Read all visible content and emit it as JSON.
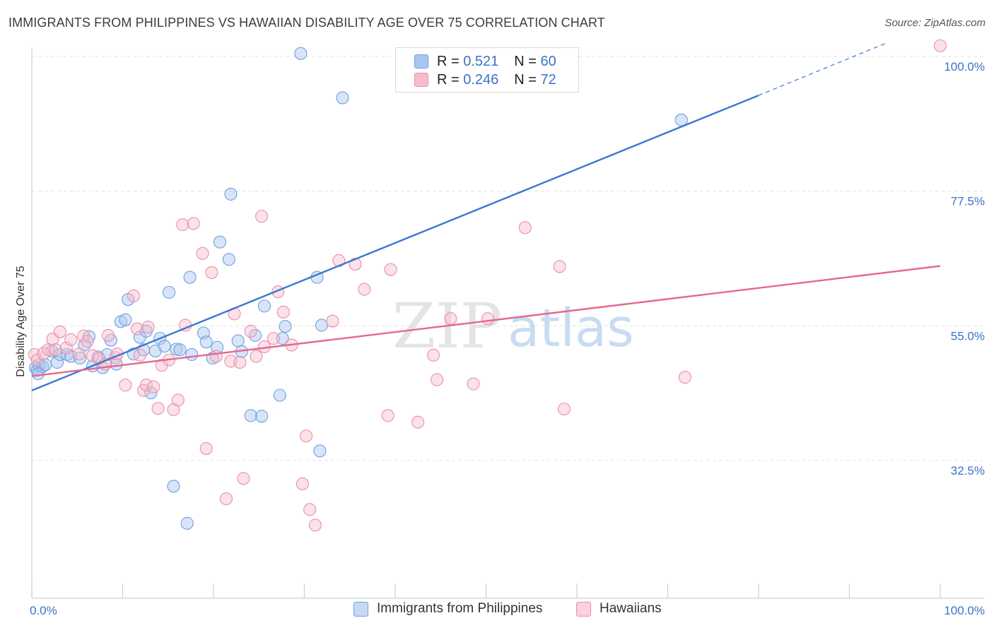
{
  "header": {
    "title": "IMMIGRANTS FROM PHILIPPINES VS HAWAIIAN DISABILITY AGE OVER 75 CORRELATION CHART",
    "source": "Source: ZipAtlas.com"
  },
  "watermark": {
    "zip": "ZIP",
    "atlas": "atlas"
  },
  "legend": {
    "r_label": "R =",
    "n_label": "N =",
    "rows": [
      {
        "r": "0.521",
        "n": "60",
        "color": "#a9c6f0",
        "border": "#6f9fde"
      },
      {
        "r": "0.246",
        "n": "72",
        "color": "#f7bccd",
        "border": "#eb8eaa"
      }
    ]
  },
  "chart_data": {
    "type": "scatter",
    "title": "IMMIGRANTS FROM PHILIPPINES VS HAWAIIAN DISABILITY AGE OVER 75 CORRELATION CHART",
    "xlabel": "",
    "ylabel": "Disability Age Over 75",
    "xlim": [
      0,
      100
    ],
    "ylim": [
      10,
      101
    ],
    "x_tick_labels": [
      "0.0%",
      "100.0%"
    ],
    "y_ticks": [
      32.5,
      55.0,
      77.5,
      100.0
    ],
    "y_tick_labels": [
      "32.5%",
      "55.0%",
      "77.5%",
      "100.0%"
    ],
    "grid": true,
    "series": [
      {
        "name": "Immigrants from Philippines",
        "color": "#a9c6f0",
        "stroke": "#6f9fde",
        "trend": {
          "x0": 0,
          "y0": 44.2,
          "x1": 80,
          "y1": 93.5,
          "dash_to_x": 94,
          "dash_to_y": 102.2,
          "color": "#3a78d0"
        },
        "points": [
          [
            0.4,
            48.0
          ],
          [
            0.6,
            47.6
          ],
          [
            0.8,
            48.4
          ],
          [
            1.2,
            48.2
          ],
          [
            1.5,
            48.5
          ],
          [
            2.2,
            50.8
          ],
          [
            2.8,
            48.9
          ],
          [
            3.1,
            50.2
          ],
          [
            3.9,
            50.2
          ],
          [
            4.3,
            49.9
          ],
          [
            5.3,
            49.6
          ],
          [
            5.8,
            51.8
          ],
          [
            6.3,
            53.2
          ],
          [
            6.7,
            48.3
          ],
          [
            7.3,
            49.8
          ],
          [
            7.8,
            48.0
          ],
          [
            8.3,
            50.2
          ],
          [
            8.7,
            52.6
          ],
          [
            9.3,
            48.6
          ],
          [
            9.8,
            55.7
          ],
          [
            10.3,
            56.0
          ],
          [
            10.6,
            59.4
          ],
          [
            11.2,
            50.3
          ],
          [
            11.9,
            53.1
          ],
          [
            12.3,
            51.0
          ],
          [
            12.6,
            54.1
          ],
          [
            13.1,
            43.8
          ],
          [
            13.6,
            50.8
          ],
          [
            14.1,
            52.9
          ],
          [
            14.6,
            51.6
          ],
          [
            15.1,
            60.6
          ],
          [
            15.9,
            51.1
          ],
          [
            16.3,
            51.0
          ],
          [
            17.4,
            63.1
          ],
          [
            17.6,
            50.2
          ],
          [
            18.9,
            53.8
          ],
          [
            19.2,
            52.3
          ],
          [
            19.9,
            49.6
          ],
          [
            20.4,
            51.4
          ],
          [
            20.7,
            69.0
          ],
          [
            21.7,
            66.1
          ],
          [
            21.9,
            77.0
          ],
          [
            22.7,
            52.5
          ],
          [
            23.1,
            50.7
          ],
          [
            24.1,
            40.0
          ],
          [
            24.6,
            53.4
          ],
          [
            25.3,
            39.9
          ],
          [
            25.6,
            58.3
          ],
          [
            27.3,
            43.4
          ],
          [
            27.6,
            52.9
          ],
          [
            27.9,
            54.9
          ],
          [
            29.6,
            100.5
          ],
          [
            31.4,
            63.1
          ],
          [
            31.7,
            34.1
          ],
          [
            31.9,
            55.1
          ],
          [
            34.2,
            93.1
          ],
          [
            15.6,
            28.2
          ],
          [
            17.1,
            22.0
          ],
          [
            71.5,
            89.4
          ],
          [
            0.7,
            47.0
          ]
        ]
      },
      {
        "name": "Hawaiians",
        "color": "#f7bccd",
        "stroke": "#eb8eaa",
        "trend": {
          "x0": 0,
          "y0": 46.6,
          "x1": 100,
          "y1": 65.0,
          "color": "#e5678f"
        },
        "points": [
          [
            0.3,
            50.2
          ],
          [
            0.6,
            49.3
          ],
          [
            1.3,
            50.4
          ],
          [
            1.8,
            51.0
          ],
          [
            2.3,
            52.8
          ],
          [
            2.6,
            51.0
          ],
          [
            3.1,
            54.0
          ],
          [
            3.8,
            51.3
          ],
          [
            4.3,
            52.7
          ],
          [
            5.2,
            50.3
          ],
          [
            5.7,
            53.3
          ],
          [
            6.1,
            52.4
          ],
          [
            6.7,
            50.0
          ],
          [
            7.4,
            49.5
          ],
          [
            8.1,
            48.6
          ],
          [
            8.4,
            53.4
          ],
          [
            9.2,
            49.7
          ],
          [
            9.4,
            50.3
          ],
          [
            10.3,
            45.1
          ],
          [
            11.2,
            60.0
          ],
          [
            11.6,
            54.5
          ],
          [
            11.9,
            50.1
          ],
          [
            12.3,
            44.2
          ],
          [
            12.6,
            45.1
          ],
          [
            12.8,
            54.8
          ],
          [
            13.4,
            44.8
          ],
          [
            13.9,
            41.2
          ],
          [
            14.3,
            48.4
          ],
          [
            15.1,
            49.3
          ],
          [
            15.6,
            41.0
          ],
          [
            16.1,
            42.6
          ],
          [
            16.9,
            55.1
          ],
          [
            16.6,
            71.9
          ],
          [
            17.8,
            72.1
          ],
          [
            18.8,
            67.1
          ],
          [
            19.2,
            34.5
          ],
          [
            19.8,
            63.9
          ],
          [
            20.3,
            49.9
          ],
          [
            21.4,
            26.1
          ],
          [
            21.9,
            49.1
          ],
          [
            22.3,
            57.0
          ],
          [
            22.9,
            48.9
          ],
          [
            23.3,
            29.5
          ],
          [
            24.1,
            54.1
          ],
          [
            24.7,
            49.9
          ],
          [
            25.3,
            73.3
          ],
          [
            25.6,
            51.5
          ],
          [
            26.6,
            52.9
          ],
          [
            27.1,
            60.7
          ],
          [
            27.7,
            57.3
          ],
          [
            28.6,
            51.8
          ],
          [
            29.8,
            28.6
          ],
          [
            30.2,
            36.6
          ],
          [
            30.6,
            24.3
          ],
          [
            31.2,
            21.7
          ],
          [
            33.1,
            55.8
          ],
          [
            33.8,
            65.9
          ],
          [
            35.6,
            65.3
          ],
          [
            36.6,
            61.1
          ],
          [
            39.2,
            40.0
          ],
          [
            39.5,
            64.4
          ],
          [
            42.5,
            38.9
          ],
          [
            44.2,
            50.1
          ],
          [
            44.6,
            46.0
          ],
          [
            46.1,
            56.2
          ],
          [
            48.6,
            45.3
          ],
          [
            50.2,
            56.2
          ],
          [
            54.3,
            71.4
          ],
          [
            58.1,
            64.9
          ],
          [
            58.6,
            41.1
          ],
          [
            71.9,
            46.4
          ],
          [
            100.0,
            101.8
          ]
        ]
      }
    ]
  },
  "bottom_legend": {
    "items": [
      {
        "label": "Immigrants from Philippines",
        "color": "#c5d9f5",
        "border": "#6f9fde"
      },
      {
        "label": "Hawaiians",
        "color": "#fad1dd",
        "border": "#eb8eaa"
      }
    ]
  }
}
